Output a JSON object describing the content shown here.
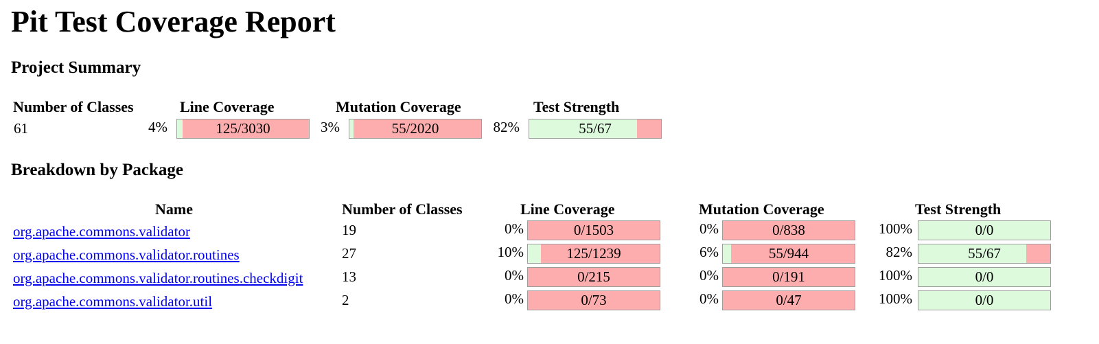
{
  "title": "Pit Test Coverage Report",
  "summary": {
    "heading": "Project Summary",
    "headers": {
      "classes": "Number of Classes",
      "line": "Line Coverage",
      "mutation": "Mutation Coverage",
      "strength": "Test Strength"
    },
    "classes": "61",
    "line": {
      "pct": "4%",
      "label": "125/3030",
      "fraction": 0.04
    },
    "mutation": {
      "pct": "3%",
      "label": "55/2020",
      "fraction": 0.03
    },
    "strength": {
      "pct": "82%",
      "label": "55/67",
      "fraction": 0.82
    }
  },
  "breakdown": {
    "heading": "Breakdown by Package",
    "headers": {
      "name": "Name",
      "classes": "Number of Classes",
      "line": "Line Coverage",
      "mutation": "Mutation Coverage",
      "strength": "Test Strength"
    },
    "rows": [
      {
        "name": "org.apache.commons.validator",
        "classes": "19",
        "line": {
          "pct": "0%",
          "label": "0/1503",
          "fraction": 0
        },
        "mutation": {
          "pct": "0%",
          "label": "0/838",
          "fraction": 0
        },
        "strength": {
          "pct": "100%",
          "label": "0/0",
          "fraction": 1
        }
      },
      {
        "name": "org.apache.commons.validator.routines",
        "classes": "27",
        "line": {
          "pct": "10%",
          "label": "125/1239",
          "fraction": 0.1
        },
        "mutation": {
          "pct": "6%",
          "label": "55/944",
          "fraction": 0.06
        },
        "strength": {
          "pct": "82%",
          "label": "55/67",
          "fraction": 0.82
        }
      },
      {
        "name": "org.apache.commons.validator.routines.checkdigit",
        "classes": "13",
        "line": {
          "pct": "0%",
          "label": "0/215",
          "fraction": 0
        },
        "mutation": {
          "pct": "0%",
          "label": "0/191",
          "fraction": 0
        },
        "strength": {
          "pct": "100%",
          "label": "0/0",
          "fraction": 1
        }
      },
      {
        "name": "org.apache.commons.validator.util",
        "classes": "2",
        "line": {
          "pct": "0%",
          "label": "0/73",
          "fraction": 0
        },
        "mutation": {
          "pct": "0%",
          "label": "0/47",
          "fraction": 0
        },
        "strength": {
          "pct": "100%",
          "label": "0/0",
          "fraction": 1
        }
      }
    ]
  },
  "colors": {
    "covered": "#ddfadd",
    "uncovered": "#fdadad",
    "link": "#0000ee"
  }
}
